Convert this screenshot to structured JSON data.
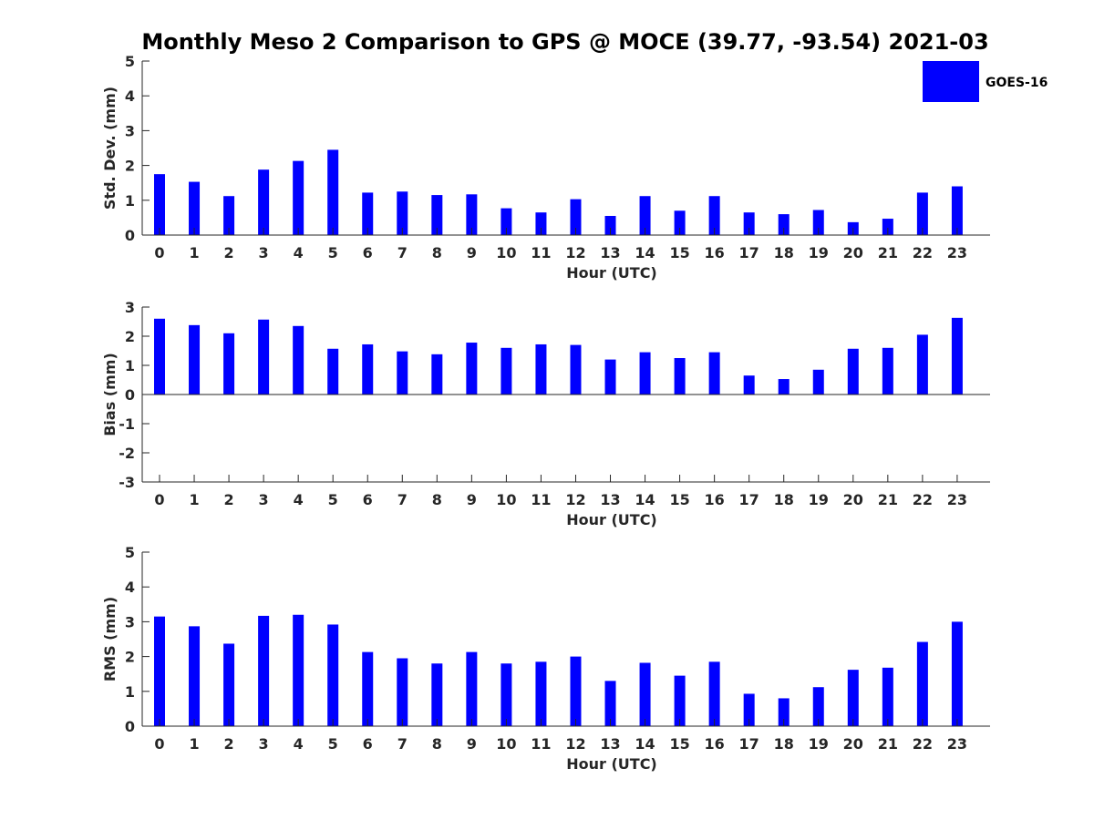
{
  "title": "Monthly Meso 2 Comparison to GPS @ MOCE (39.77, -93.54) 2021-03",
  "colors": {
    "bar": "#0000ff",
    "axis": "#262626",
    "background": "#ffffff"
  },
  "legend": {
    "label": "GOES-16",
    "placement": "top-right"
  },
  "chart_data": [
    {
      "type": "bar",
      "xlabel": "Hour (UTC)",
      "ylabel": "Std. Dev. (mm)",
      "ylim": [
        0,
        5
      ],
      "yticks": [
        "0",
        "1",
        "2",
        "3",
        "4",
        "5"
      ],
      "categories": [
        "0",
        "1",
        "2",
        "3",
        "4",
        "5",
        "6",
        "7",
        "8",
        "9",
        "10",
        "11",
        "12",
        "13",
        "14",
        "15",
        "16",
        "17",
        "18",
        "19",
        "20",
        "21",
        "22",
        "23"
      ],
      "series": [
        {
          "name": "GOES-16",
          "values": [
            1.75,
            1.53,
            1.12,
            1.88,
            2.13,
            2.45,
            1.22,
            1.25,
            1.15,
            1.17,
            0.77,
            0.65,
            1.03,
            0.55,
            1.12,
            0.7,
            1.12,
            0.65,
            0.6,
            0.72,
            0.37,
            0.47,
            1.22,
            1.4
          ]
        }
      ],
      "grid": false
    },
    {
      "type": "bar",
      "xlabel": "Hour (UTC)",
      "ylabel": "Bias (mm)",
      "ylim": [
        -3,
        3
      ],
      "yticks": [
        "-3",
        "-2",
        "-1",
        "0",
        "1",
        "2",
        "3"
      ],
      "categories": [
        "0",
        "1",
        "2",
        "3",
        "4",
        "5",
        "6",
        "7",
        "8",
        "9",
        "10",
        "11",
        "12",
        "13",
        "14",
        "15",
        "16",
        "17",
        "18",
        "19",
        "20",
        "21",
        "22",
        "23"
      ],
      "series": [
        {
          "name": "GOES-16",
          "values": [
            2.6,
            2.38,
            2.1,
            2.57,
            2.35,
            1.57,
            1.72,
            1.48,
            1.38,
            1.78,
            1.6,
            1.72,
            1.7,
            1.2,
            1.45,
            1.25,
            1.45,
            0.65,
            0.53,
            0.85,
            1.57,
            1.6,
            2.05,
            2.63
          ]
        }
      ],
      "grid": false
    },
    {
      "type": "bar",
      "xlabel": "Hour (UTC)",
      "ylabel": "RMS (mm)",
      "ylim": [
        0,
        5
      ],
      "yticks": [
        "0",
        "1",
        "2",
        "3",
        "4",
        "5"
      ],
      "categories": [
        "0",
        "1",
        "2",
        "3",
        "4",
        "5",
        "6",
        "7",
        "8",
        "9",
        "10",
        "11",
        "12",
        "13",
        "14",
        "15",
        "16",
        "17",
        "18",
        "19",
        "20",
        "21",
        "22",
        "23"
      ],
      "series": [
        {
          "name": "GOES-16",
          "values": [
            3.15,
            2.87,
            2.37,
            3.17,
            3.2,
            2.92,
            2.13,
            1.95,
            1.8,
            2.13,
            1.8,
            1.85,
            2.0,
            1.3,
            1.82,
            1.45,
            1.85,
            0.93,
            0.8,
            1.12,
            1.62,
            1.68,
            2.42,
            3.0
          ]
        }
      ],
      "grid": false
    }
  ]
}
